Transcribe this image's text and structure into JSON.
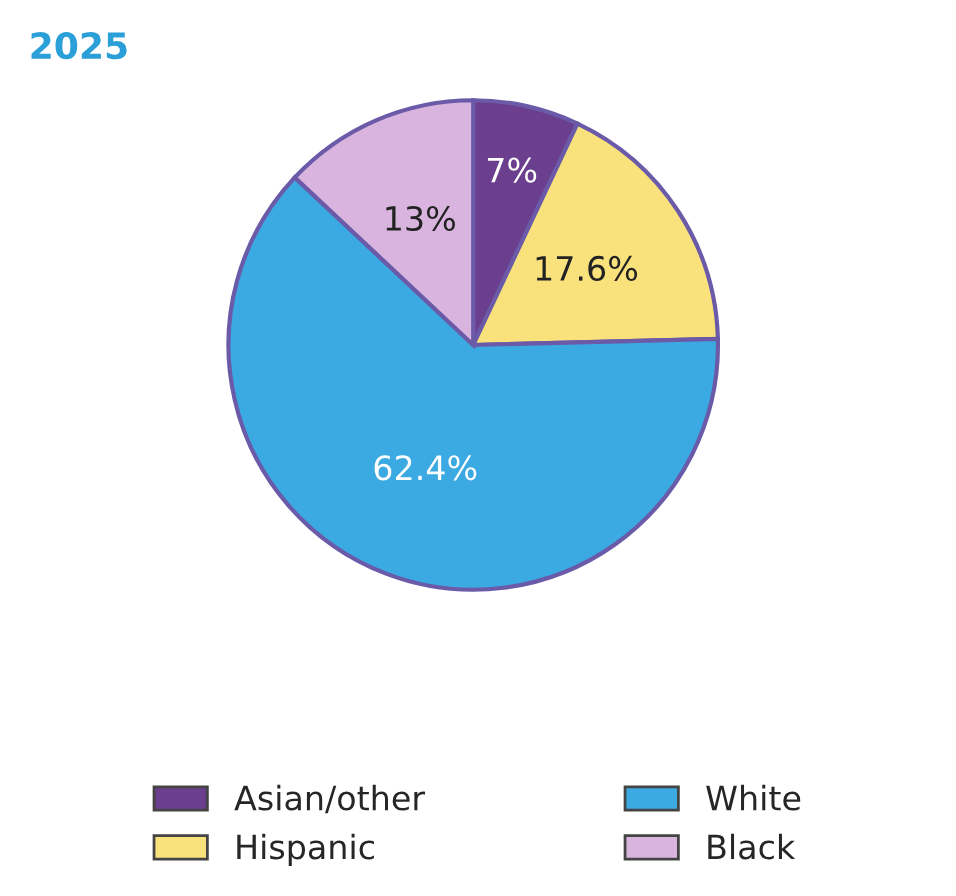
{
  "chart_data": {
    "type": "pie",
    "title": "2025",
    "categories": [
      "Asian/other",
      "Hispanic",
      "White",
      "Black"
    ],
    "values": [
      7,
      17.6,
      62.4,
      13
    ],
    "value_labels": [
      "7%",
      "17.6%",
      "62.4%",
      "13%"
    ],
    "colors": [
      "#6b3f8e",
      "#f9e27c",
      "#3ba9e2",
      "#d8b4de"
    ],
    "legend": "bottom"
  }
}
